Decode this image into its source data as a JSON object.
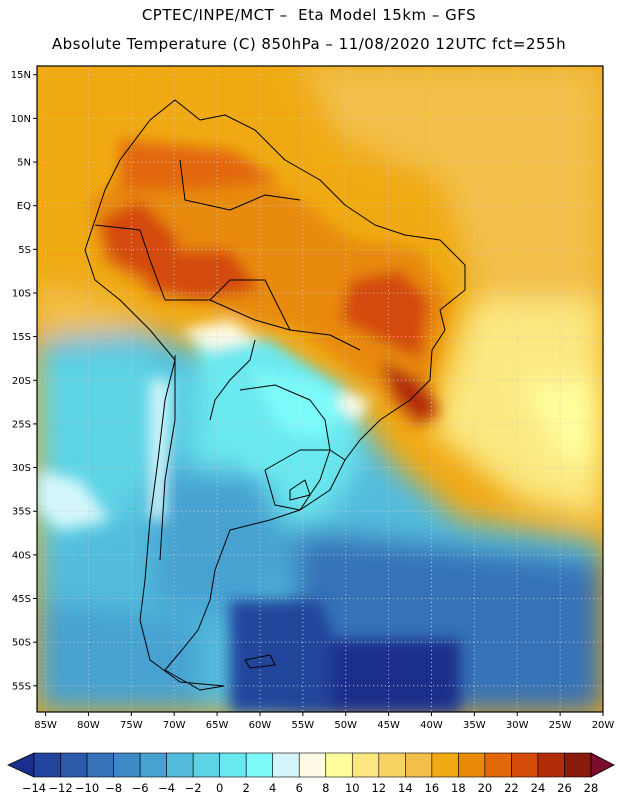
{
  "header": {
    "line1": "CPTEC/INPE/MCT –  Eta Model 15km – GFS",
    "line2": "Absolute Temperature (C) 850hPa – 11/08/2020 12UTC fct=255h"
  },
  "map": {
    "lon_range": [
      -86,
      -20
    ],
    "lat_range": [
      -58,
      16
    ],
    "lon_ticks": [
      {
        "value": -85,
        "label": "85W"
      },
      {
        "value": -80,
        "label": "80W"
      },
      {
        "value": -75,
        "label": "75W"
      },
      {
        "value": -70,
        "label": "70W"
      },
      {
        "value": -65,
        "label": "65W"
      },
      {
        "value": -60,
        "label": "60W"
      },
      {
        "value": -55,
        "label": "55W"
      },
      {
        "value": -50,
        "label": "50W"
      },
      {
        "value": -45,
        "label": "45W"
      },
      {
        "value": -40,
        "label": "40W"
      },
      {
        "value": -35,
        "label": "35W"
      },
      {
        "value": -30,
        "label": "30W"
      },
      {
        "value": -25,
        "label": "25W"
      },
      {
        "value": -20,
        "label": "20W"
      }
    ],
    "lat_ticks": [
      {
        "value": 15,
        "label": "15N"
      },
      {
        "value": 10,
        "label": "10N"
      },
      {
        "value": 5,
        "label": "5N"
      },
      {
        "value": 0,
        "label": "EQ"
      },
      {
        "value": -5,
        "label": "5S"
      },
      {
        "value": -10,
        "label": "10S"
      },
      {
        "value": -15,
        "label": "15S"
      },
      {
        "value": -20,
        "label": "20S"
      },
      {
        "value": -25,
        "label": "25S"
      },
      {
        "value": -30,
        "label": "30S"
      },
      {
        "value": -35,
        "label": "35S"
      },
      {
        "value": -40,
        "label": "40S"
      },
      {
        "value": -45,
        "label": "45S"
      },
      {
        "value": -50,
        "label": "50S"
      },
      {
        "value": -55,
        "label": "55S"
      }
    ],
    "gridlines": "dotted"
  },
  "colorbar": {
    "levels": [
      -14,
      -12,
      -10,
      -8,
      -6,
      -4,
      -2,
      0,
      2,
      4,
      6,
      8,
      10,
      12,
      14,
      16,
      18,
      20,
      22,
      24,
      26,
      28
    ],
    "labels": [
      "-14",
      "-12",
      "-10",
      "-8",
      "-6",
      "-4",
      "-2",
      "0",
      "2",
      "4",
      "6",
      "8",
      "10",
      "12",
      "14",
      "16",
      "18",
      "20",
      "22",
      "24",
      "26",
      "28"
    ],
    "colors": [
      "#1a2f8c",
      "#22449c",
      "#2b5aab",
      "#3672b8",
      "#3e8ac6",
      "#47a2d2",
      "#53bcdd",
      "#5dd4e6",
      "#6ae8ef",
      "#7dfafa",
      "#d4f6fb",
      "#fffbe5",
      "#fffe9c",
      "#fbe880",
      "#f8d364",
      "#f3bf48",
      "#f0a913",
      "#e88a07",
      "#e36808",
      "#d44a08",
      "#b22c07",
      "#8a1a0a",
      "#7a0c2e"
    ]
  }
}
